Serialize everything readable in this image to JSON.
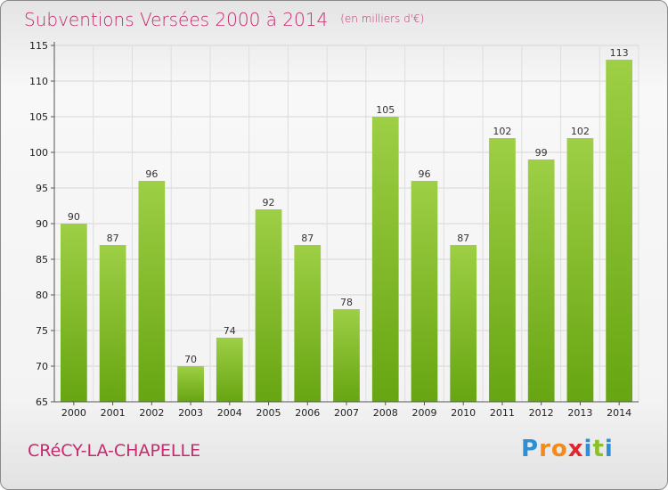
{
  "header": {
    "title": "Subventions Versées 2000 à 2014",
    "unit": "(en milliers d'€)"
  },
  "commune": "CRéCY-LA-CHAPELLE",
  "logo": {
    "letters": [
      "P",
      "r",
      "o",
      "x",
      "i",
      "t",
      "i"
    ]
  },
  "colors": {
    "bar_top": "#9ecf45",
    "bar_bottom": "#67a512",
    "title": "#c52a6e"
  },
  "chart_data": {
    "type": "bar",
    "title": "Subventions Versées 2000 à 2014",
    "xlabel": "",
    "ylabel": "",
    "categories": [
      "2000",
      "2001",
      "2002",
      "2003",
      "2004",
      "2005",
      "2006",
      "2007",
      "2008",
      "2009",
      "2010",
      "2011",
      "2012",
      "2013",
      "2014"
    ],
    "values": [
      90,
      87,
      96,
      70,
      74,
      92,
      87,
      78,
      105,
      96,
      87,
      102,
      99,
      102,
      113
    ],
    "ylim": [
      65,
      115
    ],
    "yticks": [
      65,
      70,
      75,
      80,
      85,
      90,
      95,
      100,
      105,
      110,
      115
    ],
    "grid": true,
    "legend": "none"
  }
}
